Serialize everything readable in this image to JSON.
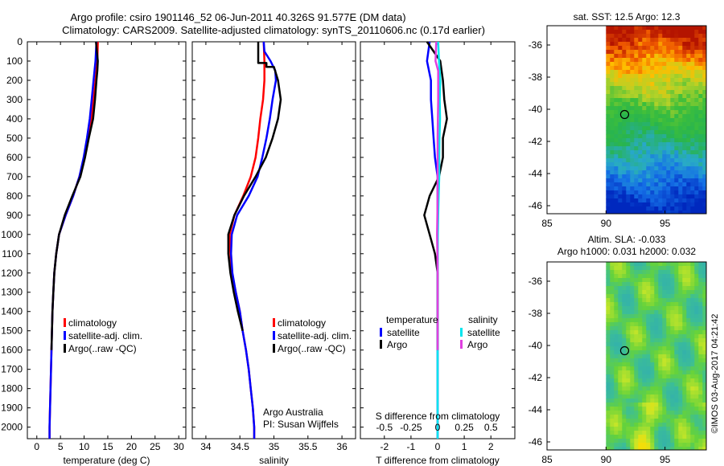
{
  "header": {
    "line1": "Argo profile: csiro 1901146_52 06-Jun-2011 40.326S 91.577E (DM data)",
    "line2": "Climatology: CARS2009. Satellite-adjusted climatology: synTS_20110606.nc (0.17d earlier)"
  },
  "colors": {
    "climatology": "#ff0000",
    "satellite": "#0000ff",
    "argo": "#000000",
    "sat_salinity": "#00e5ee",
    "argo_salinity": "#e040e0"
  },
  "depth_axis": {
    "ticks": [
      "0",
      "100",
      "200",
      "300",
      "400",
      "500",
      "600",
      "700",
      "800",
      "900",
      "1000",
      "1100",
      "1200",
      "1300",
      "1400",
      "1500",
      "1600",
      "1700",
      "1800",
      "1900",
      "2000"
    ]
  },
  "chart_data": [
    {
      "type": "line",
      "id": "temperature",
      "xlabel": "temperature (deg C)",
      "xlim": [
        -2,
        31.5
      ],
      "ylim": [
        0,
        2060
      ],
      "xticks": [
        "0",
        "5",
        "10",
        "15",
        "20",
        "25",
        "30"
      ],
      "legend": [
        "climatology",
        "satellite-adj. clim.",
        "Argo(..raw -QC)"
      ],
      "series": [
        {
          "name": "climatology",
          "color": "#ff0000",
          "points": [
            [
              12.9,
              0
            ],
            [
              12.8,
              100
            ],
            [
              12.4,
              200
            ],
            [
              12.0,
              300
            ],
            [
              11.5,
              400
            ],
            [
              10.8,
              500
            ],
            [
              10.0,
              600
            ],
            [
              9.0,
              700
            ],
            [
              7.7,
              800
            ],
            [
              6.1,
              900
            ],
            [
              4.7,
              1000
            ],
            [
              4.1,
              1100
            ],
            [
              3.7,
              1200
            ],
            [
              3.5,
              1300
            ],
            [
              3.3,
              1400
            ],
            [
              3.1,
              1600
            ],
            [
              2.9,
              1800
            ],
            [
              2.7,
              2000
            ],
            [
              2.7,
              2060
            ]
          ]
        },
        {
          "name": "satellite-adj. clim.",
          "color": "#0000ff",
          "points": [
            [
              12.6,
              0
            ],
            [
              12.4,
              100
            ],
            [
              12.0,
              200
            ],
            [
              11.6,
              300
            ],
            [
              11.2,
              400
            ],
            [
              10.6,
              500
            ],
            [
              9.9,
              600
            ],
            [
              9.0,
              700
            ],
            [
              7.7,
              800
            ],
            [
              6.1,
              900
            ],
            [
              4.7,
              1000
            ],
            [
              4.1,
              1100
            ],
            [
              3.7,
              1200
            ],
            [
              3.5,
              1300
            ],
            [
              3.3,
              1400
            ],
            [
              3.1,
              1600
            ],
            [
              2.9,
              1800
            ],
            [
              2.7,
              2000
            ],
            [
              2.7,
              2060
            ]
          ]
        },
        {
          "name": "Argo(..raw -QC)",
          "color": "#000000",
          "points": [
            [
              12.5,
              0
            ],
            [
              12.9,
              100
            ],
            [
              12.8,
              150
            ],
            [
              12.6,
              200
            ],
            [
              12.3,
              300
            ],
            [
              11.9,
              400
            ],
            [
              11.0,
              500
            ],
            [
              10.2,
              600
            ],
            [
              9.2,
              700
            ],
            [
              7.5,
              800
            ],
            [
              5.9,
              900
            ],
            [
              4.7,
              1000
            ],
            [
              4.1,
              1100
            ],
            [
              3.7,
              1200
            ],
            [
              3.5,
              1300
            ],
            [
              3.3,
              1400
            ],
            [
              3.1,
              1600
            ]
          ]
        }
      ]
    },
    {
      "type": "line",
      "id": "salinity",
      "xlabel": "salinity",
      "xlim": [
        33.8,
        36.2
      ],
      "ylim": [
        0,
        2060
      ],
      "xticks": [
        "34",
        "34.5",
        "35",
        "35.5",
        "36"
      ],
      "legend": [
        "climatology",
        "satellite-adj. clim.",
        "Argo(..raw -QC)"
      ],
      "annotation": [
        "Argo Australia",
        "PI: Susan Wijffels"
      ],
      "series": [
        {
          "name": "climatology",
          "color": "#ff0000",
          "points": [
            [
              34.85,
              0
            ],
            [
              34.86,
              100
            ],
            [
              34.86,
              200
            ],
            [
              34.84,
              300
            ],
            [
              34.8,
              400
            ],
            [
              34.77,
              500
            ],
            [
              34.73,
              600
            ],
            [
              34.66,
              700
            ],
            [
              34.55,
              800
            ],
            [
              34.42,
              900
            ],
            [
              34.35,
              1000
            ],
            [
              34.36,
              1100
            ],
            [
              34.38,
              1200
            ],
            [
              34.44,
              1300
            ],
            [
              34.5,
              1400
            ],
            [
              34.54,
              1500
            ],
            [
              34.59,
              1600
            ],
            [
              34.63,
              1700
            ],
            [
              34.66,
              1800
            ],
            [
              34.69,
              1900
            ],
            [
              34.71,
              2000
            ],
            [
              34.71,
              2060
            ]
          ]
        },
        {
          "name": "satellite-adj. clim.",
          "color": "#0000ff",
          "points": [
            [
              34.85,
              0
            ],
            [
              34.86,
              50
            ],
            [
              34.95,
              100
            ],
            [
              35.02,
              150
            ],
            [
              35.03,
              200
            ],
            [
              34.98,
              300
            ],
            [
              34.94,
              400
            ],
            [
              34.89,
              500
            ],
            [
              34.83,
              600
            ],
            [
              34.76,
              700
            ],
            [
              34.63,
              800
            ],
            [
              34.46,
              900
            ],
            [
              34.38,
              1000
            ],
            [
              34.37,
              1100
            ],
            [
              34.39,
              1200
            ],
            [
              34.44,
              1300
            ],
            [
              34.5,
              1400
            ],
            [
              34.54,
              1500
            ],
            [
              34.59,
              1600
            ],
            [
              34.63,
              1700
            ],
            [
              34.66,
              1800
            ],
            [
              34.69,
              1900
            ],
            [
              34.71,
              2000
            ],
            [
              34.71,
              2060
            ]
          ]
        },
        {
          "name": "Argo(..raw -QC)",
          "color": "#000000",
          "points": [
            [
              34.77,
              0
            ],
            [
              34.77,
              110
            ],
            [
              34.89,
              110
            ],
            [
              34.89,
              130
            ],
            [
              35.0,
              130
            ],
            [
              35.06,
              200
            ],
            [
              35.1,
              300
            ],
            [
              35.06,
              400
            ],
            [
              34.98,
              500
            ],
            [
              34.88,
              600
            ],
            [
              34.73,
              700
            ],
            [
              34.56,
              800
            ],
            [
              34.42,
              900
            ],
            [
              34.33,
              1000
            ],
            [
              34.33,
              1100
            ],
            [
              34.36,
              1200
            ],
            [
              34.41,
              1300
            ],
            [
              34.47,
              1400
            ],
            [
              34.54,
              1500
            ]
          ]
        }
      ]
    },
    {
      "type": "line",
      "id": "differences",
      "xlabel": "T difference from climatology",
      "xlabel2": "S difference from climatology",
      "xlim": [
        -2.9,
        2.9
      ],
      "ylim": [
        0,
        2060
      ],
      "xticks": [
        "-2",
        "-1",
        "0",
        "1",
        "2"
      ],
      "xticks2": [
        "-0.5",
        "-0.25",
        "0",
        "0.25",
        "0.5"
      ],
      "legend_header": [
        "temperature",
        "salinity"
      ],
      "legend": [
        "satellite",
        "Argo",
        "satellite",
        "Argo"
      ],
      "series": [
        {
          "name": "T satellite",
          "color": "#0000ff",
          "points": [
            [
              -0.3,
              0
            ],
            [
              -0.4,
              100
            ],
            [
              -0.25,
              200
            ],
            [
              -0.25,
              300
            ],
            [
              -0.2,
              400
            ],
            [
              -0.15,
              500
            ],
            [
              -0.1,
              600
            ],
            [
              0,
              700
            ],
            [
              0,
              900
            ],
            [
              0,
              1100
            ],
            [
              0,
              1300
            ],
            [
              0,
              2060
            ]
          ]
        },
        {
          "name": "T Argo",
          "color": "#000000",
          "points": [
            [
              -0.4,
              0
            ],
            [
              0.1,
              100
            ],
            [
              0.2,
              200
            ],
            [
              0.25,
              300
            ],
            [
              0.35,
              400
            ],
            [
              0.2,
              500
            ],
            [
              0.2,
              600
            ],
            [
              0.05,
              700
            ],
            [
              -0.3,
              800
            ],
            [
              -0.5,
              900
            ],
            [
              -0.3,
              1000
            ],
            [
              -0.1,
              1100
            ],
            [
              0,
              1200
            ],
            [
              0,
              1400
            ],
            [
              0,
              1600
            ]
          ]
        },
        {
          "name": "S satellite",
          "color": "#00e5ee",
          "points": [
            [
              0.02,
              0
            ],
            [
              0.05,
              100
            ],
            [
              0.1,
              200
            ],
            [
              0.08,
              300
            ],
            [
              0.09,
              400
            ],
            [
              0.07,
              500
            ],
            [
              0.06,
              600
            ],
            [
              0.06,
              700
            ],
            [
              0.04,
              800
            ],
            [
              0.02,
              900
            ],
            [
              0.01,
              1000
            ],
            [
              0,
              1100
            ],
            [
              0,
              1400
            ],
            [
              0,
              2060
            ]
          ]
        },
        {
          "name": "S Argo",
          "color": "#e040e0",
          "points": [
            [
              -0.05,
              0
            ],
            [
              -0.08,
              100
            ],
            [
              0.02,
              150
            ],
            [
              0.02,
              300
            ],
            [
              0.01,
              400
            ],
            [
              0,
              500
            ],
            [
              0,
              600
            ],
            [
              0,
              700
            ],
            [
              0,
              800
            ],
            [
              -0.01,
              900
            ],
            [
              -0.02,
              1000
            ],
            [
              -0.01,
              1100
            ],
            [
              0,
              1200
            ],
            [
              0,
              1400
            ],
            [
              0,
              1600
            ]
          ]
        }
      ]
    },
    {
      "type": "heatmap",
      "id": "sst_map",
      "title": "sat. SST: 12.5 Argo: 12.3",
      "xlim": [
        85,
        98.5
      ],
      "ylim": [
        -46.5,
        -34.8
      ],
      "xticks": [
        "85",
        "90",
        "95"
      ],
      "yticks": [
        "-36",
        "-38",
        "-40",
        "-42",
        "-44",
        "-46"
      ],
      "marker": [
        91.577,
        -40.326
      ],
      "data_lon_min": 90
    },
    {
      "type": "heatmap",
      "id": "sla_map",
      "title": "Altim. SLA: -0.033",
      "subtitle": "Argo h1000: 0.031 h2000: 0.032",
      "xlim": [
        85,
        98.5
      ],
      "ylim": [
        -46.5,
        -34.8
      ],
      "xticks": [
        "85",
        "90",
        "95"
      ],
      "yticks": [
        "-36",
        "-38",
        "-40",
        "-42",
        "-44",
        "-46"
      ],
      "marker": [
        91.577,
        -40.326
      ],
      "data_lon_min": 90
    }
  ],
  "credit": "©IMOS 03-Aug-2017 04:21:42"
}
